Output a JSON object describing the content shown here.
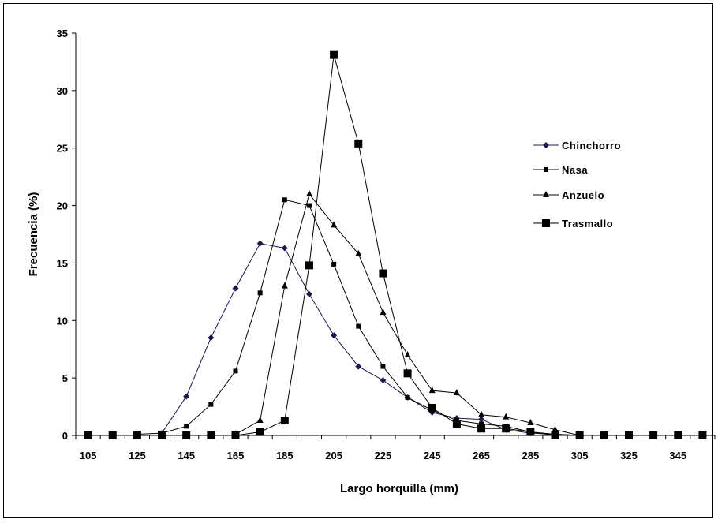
{
  "chart_data": {
    "type": "line",
    "title": "",
    "xlabel": "Largo horquilla (mm)",
    "ylabel": "Frecuencia (%)",
    "ylim": [
      0,
      35
    ],
    "y_ticks": [
      "0",
      "5",
      "10",
      "15",
      "20",
      "25",
      "30",
      "35"
    ],
    "x_tick_labels": [
      "105",
      "125",
      "145",
      "165",
      "185",
      "205",
      "225",
      "245",
      "265",
      "285",
      "305",
      "325",
      "345"
    ],
    "x": [
      105,
      115,
      125,
      135,
      145,
      155,
      165,
      175,
      185,
      195,
      205,
      215,
      225,
      235,
      245,
      255,
      265,
      275,
      285,
      295,
      305,
      315,
      325,
      335,
      345,
      355
    ],
    "grid": false,
    "legend_position": "right",
    "series": [
      {
        "name": "Chinchorro",
        "marker": "diamond",
        "color": "#1a1a4a",
        "values": [
          null,
          null,
          null,
          0.2,
          3.4,
          8.5,
          12.8,
          16.7,
          16.3,
          12.3,
          8.7,
          6.0,
          4.8,
          3.3,
          2.0,
          1.5,
          1.4,
          0.5,
          0.2,
          0.1,
          0,
          null,
          null,
          null,
          null,
          null
        ]
      },
      {
        "name": "Nasa",
        "marker": "square-small",
        "color": "#000000",
        "values": [
          null,
          null,
          0.1,
          0.2,
          0.8,
          2.7,
          5.6,
          12.4,
          20.5,
          20.0,
          14.9,
          9.5,
          6.0,
          3.3,
          2.2,
          1.3,
          1.0,
          0.8,
          0.3,
          0.1,
          0,
          null,
          null,
          null,
          null,
          null
        ]
      },
      {
        "name": "Anzuelo",
        "marker": "triangle",
        "color": "#000000",
        "values": [
          null,
          null,
          null,
          null,
          null,
          null,
          0.1,
          1.3,
          13.0,
          21.0,
          18.3,
          15.8,
          10.7,
          7.0,
          3.9,
          3.7,
          1.8,
          1.6,
          1.1,
          0.5,
          0,
          0,
          null,
          null,
          null,
          null
        ]
      },
      {
        "name": "Trasmallo",
        "marker": "square-large",
        "color": "#000000",
        "values": [
          0,
          0,
          0,
          0,
          0,
          0,
          0,
          0.3,
          1.3,
          14.8,
          33.1,
          25.4,
          14.1,
          5.4,
          2.4,
          1.0,
          0.6,
          0.6,
          0.3,
          0,
          0,
          0,
          0,
          0,
          0,
          0
        ]
      }
    ]
  }
}
